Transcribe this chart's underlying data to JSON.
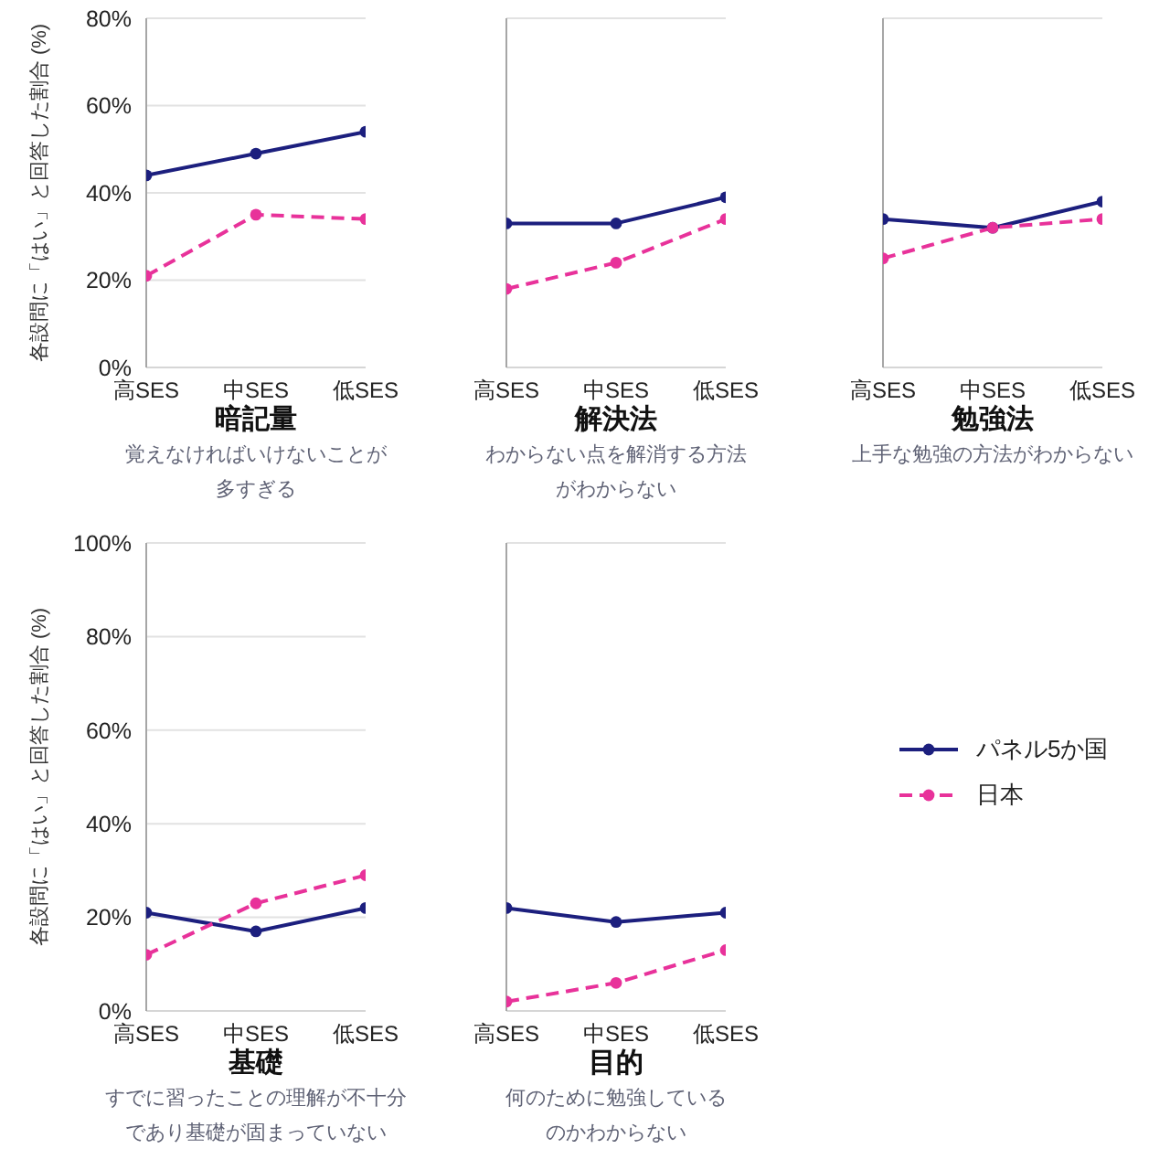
{
  "chart_data": [
    {
      "type": "line",
      "title": "暗記量",
      "subtitle": "覚えなければいけないことが多すぎる",
      "ylabel": "各設問に「はい」と回答した割合 (%)",
      "categories": [
        "高SES",
        "中SES",
        "低SES"
      ],
      "series": [
        {
          "color": "#1c1f7e",
          "line_style": "solid",
          "values": [
            44,
            49,
            54
          ]
        },
        {
          "color": "#e8329a",
          "line_style": "dashed",
          "values": [
            21,
            35,
            34
          ]
        }
      ],
      "ylim": [
        0,
        80
      ],
      "yticks": [
        {
          "value": 0,
          "label": "0%"
        },
        {
          "value": 20,
          "label": "20%"
        },
        {
          "value": 40,
          "label": "40%"
        },
        {
          "value": 60,
          "label": "60%"
        },
        {
          "value": 80,
          "label": "80%"
        }
      ],
      "grid": "y",
      "marker": "circle"
    },
    {
      "type": "line",
      "title": "解決法",
      "subtitle": "わからない点を解消する方法がわからない",
      "categories": [
        "高SES",
        "中SES",
        "低SES"
      ],
      "series": [
        {
          "color": "#1c1f7e",
          "line_style": "solid",
          "values": [
            33,
            33,
            39
          ]
        },
        {
          "color": "#e8329a",
          "line_style": "dashed",
          "values": [
            18,
            24,
            34
          ]
        }
      ],
      "ylim": [
        0,
        80
      ],
      "yticks": [
        {
          "value": 0,
          "label": null
        },
        {
          "value": 20,
          "label": null
        },
        {
          "value": 40,
          "label": null
        },
        {
          "value": 60,
          "label": null
        },
        {
          "value": 80,
          "label": null
        }
      ],
      "tick_labels": "x",
      "grid": "y",
      "marker": "circle"
    },
    {
      "type": "line",
      "title": "勉強法",
      "subtitle": "上手な勉強の方法がわからない",
      "categories": [
        "高SES",
        "中SES",
        "低SES"
      ],
      "series": [
        {
          "color": "#1c1f7e",
          "line_style": "solid",
          "values": [
            34,
            32,
            38
          ]
        },
        {
          "color": "#e8329a",
          "line_style": "dashed",
          "values": [
            25,
            32,
            34
          ]
        }
      ],
      "ylim": [
        0,
        80
      ],
      "yticks": [
        {
          "value": 0,
          "label": null
        },
        {
          "value": 20,
          "label": null
        },
        {
          "value": 40,
          "label": null
        },
        {
          "value": 60,
          "label": null
        },
        {
          "value": 80,
          "label": null
        }
      ],
      "tick_labels": "x",
      "grid": "y",
      "marker": "circle"
    },
    {
      "type": "line",
      "title": "基礎",
      "subtitle": "すでに習ったことの理解が不十分であり基礎が固まっていない",
      "ylabel": "各設問に「はい」と回答した割合 (%)",
      "categories": [
        "高SES",
        "中SES",
        "低SES"
      ],
      "series": [
        {
          "color": "#1c1f7e",
          "line_style": "solid",
          "values": [
            21,
            17,
            22
          ]
        },
        {
          "color": "#e8329a",
          "line_style": "dashed",
          "values": [
            12,
            23,
            29
          ]
        }
      ],
      "ylim": [
        0,
        100
      ],
      "yticks": [
        {
          "value": 0,
          "label": "0%"
        },
        {
          "value": 20,
          "label": "20%"
        },
        {
          "value": 40,
          "label": "40%"
        },
        {
          "value": 60,
          "label": "60%"
        },
        {
          "value": 80,
          "label": "80%"
        },
        {
          "value": 100,
          "label": "100%"
        }
      ],
      "grid": "y",
      "marker": "circle"
    },
    {
      "type": "line",
      "title": "目的",
      "subtitle": "何のために勉強しているのかわからない",
      "categories": [
        "高SES",
        "中SES",
        "低SES"
      ],
      "series": [
        {
          "name": "パネル5か国",
          "color": "#1c1f7e",
          "line_style": "solid",
          "values": [
            22,
            19,
            21
          ]
        },
        {
          "name": "日本",
          "color": "#e8329a",
          "line_style": "dashed",
          "values": [
            2,
            6,
            13
          ]
        }
      ],
      "ylim": [
        0,
        100
      ],
      "yticks": [
        {
          "value": 0,
          "label": null
        },
        {
          "value": 20,
          "label": null
        },
        {
          "value": 40,
          "label": null
        },
        {
          "value": 60,
          "label": null
        },
        {
          "value": 80,
          "label": null
        },
        {
          "value": 100,
          "label": null
        }
      ],
      "tick_labels": "x",
      "grid": "y",
      "legend": "right",
      "marker": "circle"
    }
  ]
}
